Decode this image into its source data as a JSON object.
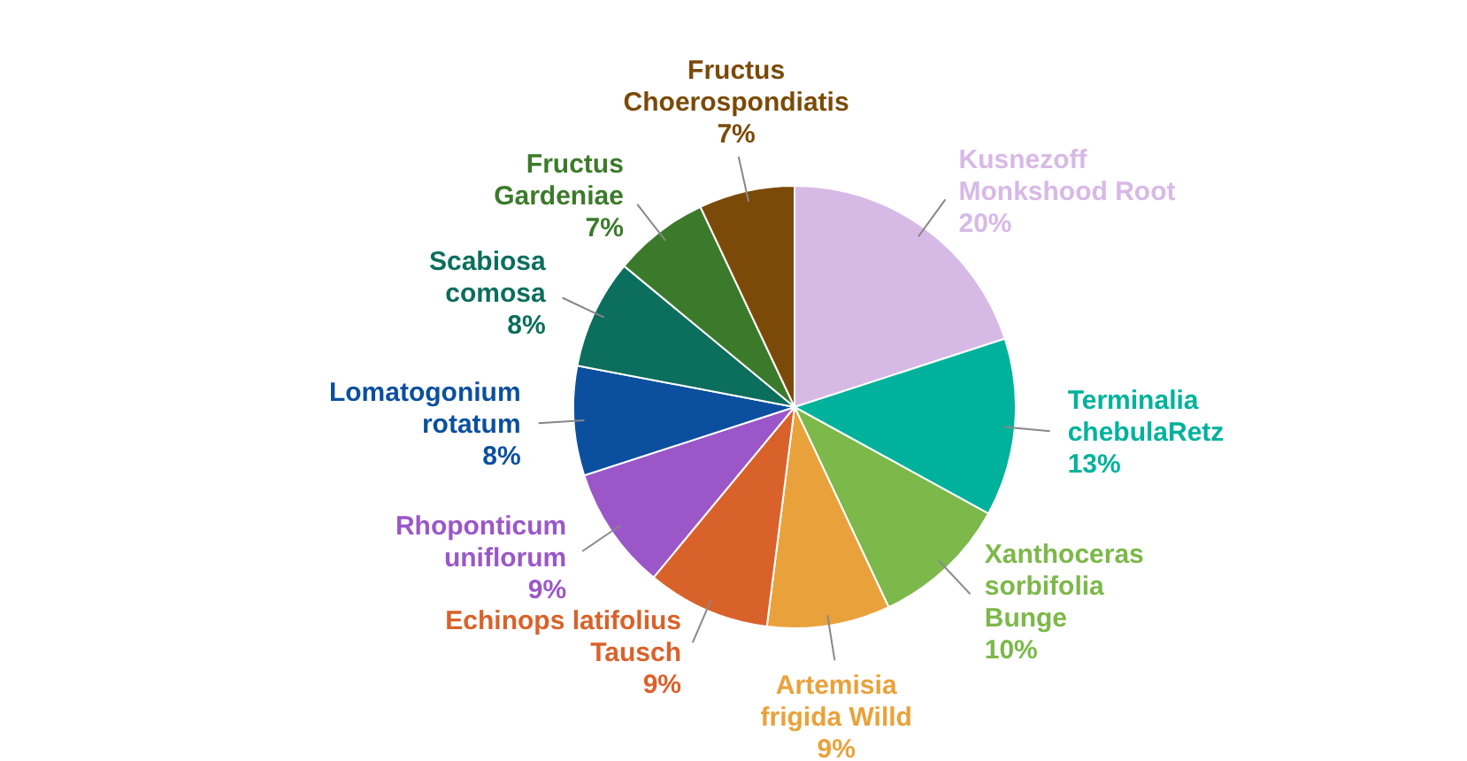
{
  "chart_data": {
    "type": "pie",
    "categories": [
      "Kusnezoff\nMonkshood Root",
      "Terminalia\nchebulaRetz",
      "Xanthoceras\nsorbifolia\nBunge",
      "Artemisia\nfrigida Willd",
      "Echinops latifolius\nTausch",
      "Rhoponticum\nuniflorum",
      "Lomatogonium\nrotatum",
      "Scabiosa\ncomosa",
      "Fructus\nGardeniae",
      "Fructus\nChoerospondiatis"
    ],
    "values": [
      20,
      13,
      10,
      9,
      9,
      9,
      8,
      8,
      7,
      7
    ],
    "value_labels": [
      "20%",
      "13%",
      "10%",
      "9%",
      "9%",
      "9%",
      "8%",
      "8%",
      "7%",
      "7%"
    ],
    "colors": [
      "#d7b9e6",
      "#00b29c",
      "#7cb84a",
      "#e9a23b",
      "#d9622b",
      "#9b57c8",
      "#0b4f9e",
      "#0c6e5d",
      "#3c7a2b",
      "#7b4a08"
    ]
  }
}
